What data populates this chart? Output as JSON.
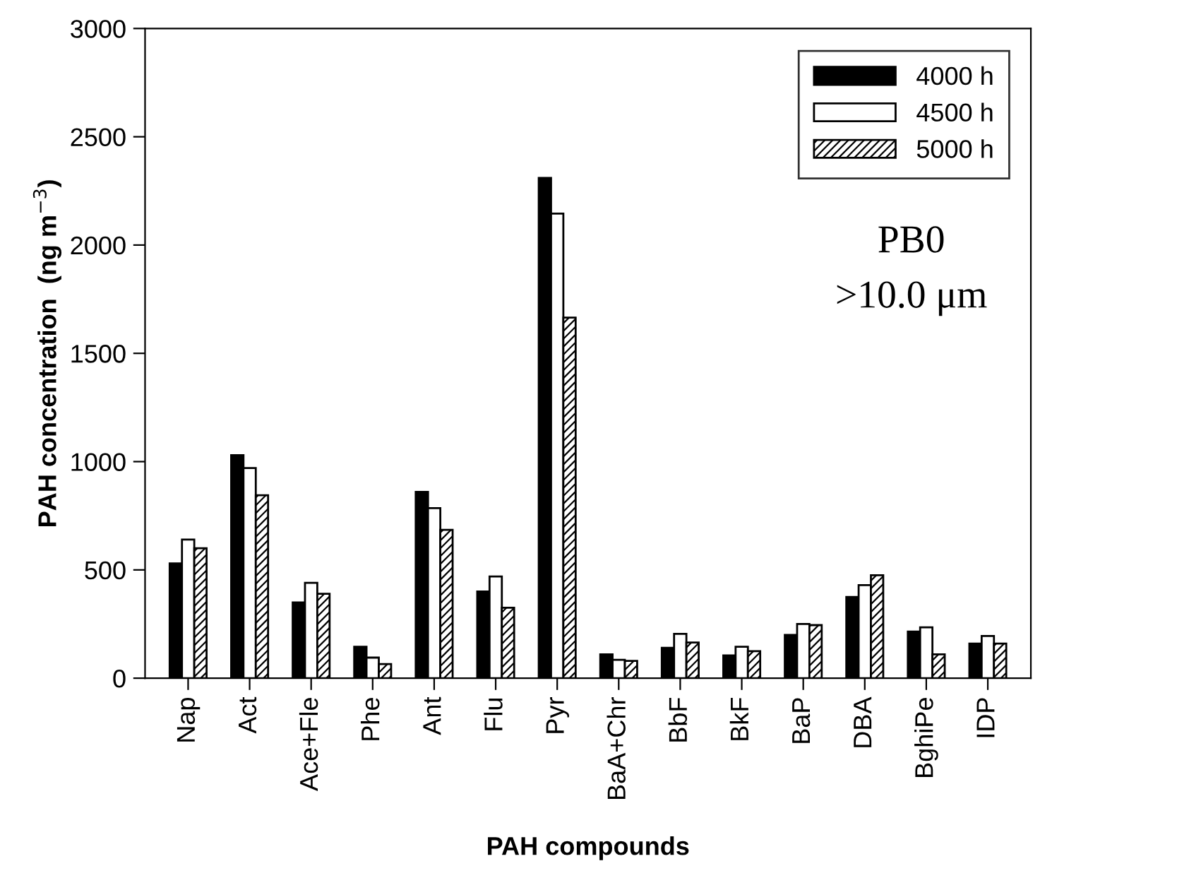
{
  "chart_data": {
    "type": "bar",
    "xlabel": "PAH compounds",
    "ylabel": "PAH concentration  (ng m$^{−3}$)",
    "categories": [
      "Nap",
      "Act",
      "Ace+Fle",
      "Phe",
      "Ant",
      "Flu",
      "Pyr",
      "BaA+Chr",
      "BbF",
      "BkF",
      "BaP",
      "DBA",
      "BghiPe",
      "IDP"
    ],
    "series": [
      {
        "name": "4000 h",
        "color": "#000000",
        "values": [
          530,
          1030,
          350,
          145,
          860,
          400,
          2310,
          110,
          140,
          105,
          200,
          375,
          215,
          160
        ]
      },
      {
        "name": "4500 h",
        "color": "#ffffff",
        "values": [
          640,
          970,
          440,
          95,
          785,
          470,
          2145,
          85,
          205,
          145,
          250,
          430,
          235,
          195
        ]
      },
      {
        "name": "5000 h",
        "color": "#000000",
        "values": [
          600,
          845,
          390,
          65,
          685,
          325,
          1665,
          80,
          165,
          125,
          245,
          475,
          110,
          160
        ]
      }
    ],
    "ylim": [
      0,
      3000
    ],
    "yticks": [
      0,
      500,
      1000,
      1500,
      2000,
      2500,
      3000
    ],
    "grid": false,
    "legend": "top right",
    "annotations": [
      "PB0",
      ">10.0 μm"
    ]
  }
}
